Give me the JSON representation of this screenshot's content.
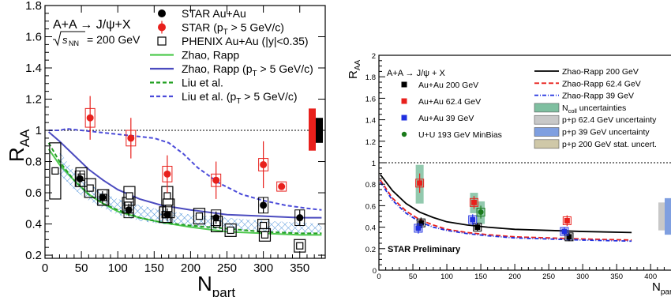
{
  "chart_data": [
    {
      "type": "scatter",
      "xlabel": "N",
      "xlabel_sub": "part",
      "ylabel": "R",
      "ylabel_sub": "AA",
      "xlim": [
        0,
        385
      ],
      "ylim": [
        0.18,
        1.8
      ],
      "x_ticks": [
        "0",
        "50",
        "100",
        "150",
        "200",
        "250",
        "300",
        "350"
      ],
      "y_ticks": [
        "0.2",
        "0.4",
        "0.6",
        "0.8",
        "1",
        "1.2",
        "1.4",
        "1.6",
        "1.8"
      ],
      "x_tick_values": [
        0,
        50,
        100,
        150,
        200,
        250,
        300,
        350
      ],
      "y_tick_values": [
        0.2,
        0.4,
        0.6,
        0.8,
        1.0,
        1.2,
        1.4,
        1.6,
        1.8
      ],
      "reference_line_y": 1.0,
      "annotations": [
        "A+A → J/ψ+X",
        "√s",
        "NN",
        "= 200 GeV"
      ],
      "legend": [
        {
          "label": "STAR Au+Au",
          "marker": "filled-circle",
          "color": "#000000"
        },
        {
          "label": "STAR (p",
          "label_sub": "T",
          "label_end": "> 5 GeV/c)",
          "marker": "filled-circle",
          "color": "#e8201c"
        },
        {
          "label": "PHENIX Au+Au (|y|<0.35)",
          "marker": "open-square",
          "color": "#000000"
        },
        {
          "label": "Zhao, Rapp",
          "line": "solid",
          "color": "#4fc94f"
        },
        {
          "label": "Zhao, Rapp (p",
          "label_sub": "T",
          "label_end": "> 5 GeV/c)",
          "line": "solid",
          "color": "#4b4bbf"
        },
        {
          "label": "Liu et al.",
          "line": "dashed",
          "color": "#22a022"
        },
        {
          "label": "Liu et al. (p",
          "label_sub": "T",
          "label_end": "> 5 GeV/c)",
          "line": "dashed",
          "color": "#4b4bd9"
        }
      ],
      "series": [
        {
          "name": "STAR Au+Au",
          "color": "#000000",
          "x": [
            48,
            79,
            115,
            168,
            235,
            300,
            350
          ],
          "y": [
            0.69,
            0.57,
            0.49,
            0.46,
            0.44,
            0.52,
            0.44
          ],
          "err": [
            0.05,
            0.04,
            0.04,
            0.04,
            0.04,
            0.05,
            0.05
          ],
          "sys": [
            0.05,
            0.05,
            0.05,
            0.05,
            0.05,
            0.05,
            0.05
          ]
        },
        {
          "name": "STAR (pT > 5 GeV/c)",
          "color": "#e8201c",
          "x": [
            62,
            118,
            168,
            235,
            300,
            325
          ],
          "y": [
            1.08,
            0.95,
            0.72,
            0.68,
            0.78,
            0.64
          ],
          "err": [
            0.14,
            0.13,
            0.12,
            0.12,
            0.15,
            0.02
          ],
          "sys": [
            0.06,
            0.05,
            0.05,
            0.04,
            0.04,
            0.03
          ]
        },
        {
          "name": "PHENIX Au+Au (|y|<0.35)",
          "color": "#000000",
          "x": [
            14,
            50,
            62,
            80,
            114,
            116,
            165,
            168,
            170,
            212,
            236,
            255,
            300,
            302,
            350
          ],
          "y": [
            0.74,
            0.7,
            0.63,
            0.57,
            0.52,
            0.58,
            0.46,
            0.58,
            0.5,
            0.45,
            0.4,
            0.36,
            0.39,
            0.33,
            0.26
          ],
          "sys": [
            0.18,
            0.06,
            0.06,
            0.05,
            0.05,
            0.06,
            0.05,
            0.06,
            0.06,
            0.05,
            0.05,
            0.04,
            0.04,
            0.04,
            0.04
          ]
        }
      ],
      "curves": [
        {
          "name": "Zhao, Rapp",
          "color": "#4fc94f",
          "dash": "",
          "x": [
            5,
            20,
            40,
            60,
            80,
            100,
            130,
            160,
            200,
            250,
            300,
            350,
            380
          ],
          "y": [
            0.88,
            0.78,
            0.68,
            0.59,
            0.53,
            0.48,
            0.44,
            0.41,
            0.38,
            0.35,
            0.34,
            0.33,
            0.33
          ]
        },
        {
          "name": "Zhao, Rapp (pT > 5 GeV/c)",
          "color": "#4b4bbf",
          "dash": "",
          "x": [
            5,
            20,
            40,
            60,
            80,
            100,
            130,
            160,
            200,
            250,
            300,
            350,
            380
          ],
          "y": [
            0.99,
            0.93,
            0.84,
            0.75,
            0.68,
            0.62,
            0.56,
            0.52,
            0.49,
            0.46,
            0.45,
            0.44,
            0.44
          ]
        },
        {
          "name": "Liu et al.",
          "color": "#22a022",
          "dash": "5,3",
          "x": [
            5,
            20,
            40,
            60,
            80,
            100,
            130,
            160,
            200,
            250,
            300,
            350,
            380
          ],
          "y": [
            0.92,
            0.8,
            0.68,
            0.59,
            0.53,
            0.49,
            0.44,
            0.41,
            0.39,
            0.37,
            0.35,
            0.34,
            0.34
          ]
        },
        {
          "name": "Liu et al. (pT > 5 GeV/c)",
          "color": "#4b4bd9",
          "dash": "5,3",
          "x": [
            5,
            20,
            30,
            50,
            70,
            90,
            110,
            130,
            150,
            170,
            190,
            210,
            240,
            270,
            300,
            330,
            360,
            380
          ],
          "y": [
            1.0,
            1.0,
            1.01,
            1.0,
            0.99,
            0.98,
            0.97,
            0.96,
            0.95,
            0.92,
            0.85,
            0.76,
            0.66,
            0.59,
            0.55,
            0.52,
            0.5,
            0.49
          ]
        }
      ],
      "uncertainty_boxes": [
        {
          "color": "#e8201c",
          "y_low": 0.87,
          "y_high": 1.14
        },
        {
          "color": "#000000",
          "y_low": 0.92,
          "y_high": 1.08
        }
      ],
      "hatched_band": {
        "color": "#4a90d9",
        "x": [
          20,
          40,
          60,
          80,
          100,
          130,
          160,
          200,
          250,
          300,
          350,
          380
        ],
        "y_low": [
          0.72,
          0.62,
          0.55,
          0.5,
          0.46,
          0.42,
          0.4,
          0.38,
          0.36,
          0.35,
          0.34,
          0.34
        ],
        "y_high": [
          0.86,
          0.74,
          0.66,
          0.6,
          0.56,
          0.52,
          0.49,
          0.46,
          0.44,
          0.42,
          0.41,
          0.4
        ]
      }
    },
    {
      "type": "scatter",
      "xlabel": "N",
      "xlabel_sub": "part",
      "ylabel": "R",
      "ylabel_sub": "AA",
      "xlim": [
        0,
        430
      ],
      "ylim": [
        0,
        2.0
      ],
      "x_ticks": [
        "0",
        "50",
        "100",
        "150",
        "200",
        "250",
        "300",
        "350",
        "400"
      ],
      "y_ticks": [
        "0.2",
        "0.4",
        "0.6",
        "0.8",
        "1",
        "1.2",
        "1.4",
        "1.6",
        "1.8",
        "2"
      ],
      "x_tick_values": [
        0,
        50,
        100,
        150,
        200,
        250,
        300,
        350,
        400
      ],
      "y_tick_values": [
        0.2,
        0.4,
        0.6,
        0.8,
        1.0,
        1.2,
        1.4,
        1.6,
        1.8,
        2.0
      ],
      "reference_line_y": 1.0,
      "annotations": [
        "A+A → J/ψ + X",
        "STAR Preliminary"
      ],
      "legend_left": [
        {
          "label": "Au+Au 200 GeV",
          "color": "#000000"
        },
        {
          "label": "Au+Au 62.4 GeV",
          "color": "#e8201c"
        },
        {
          "label": "Au+Au 39 GeV",
          "color": "#2030e0"
        },
        {
          "label": "U+U 193 GeV MinBias",
          "color": "#1a7a1a"
        }
      ],
      "legend_right": [
        {
          "label": "Zhao-Rapp 200 GeV",
          "line": "solid",
          "color": "#000000"
        },
        {
          "label": "Zhao-Rapp 62.4 GeV",
          "line": "dashed",
          "color": "#e8201c"
        },
        {
          "label": "Zhao-Rapp 39 GeV",
          "line": "dashdot",
          "color": "#2030e0"
        },
        {
          "label": "N",
          "label_sub": "coll",
          "label_end": " uncertainties",
          "box": "#7fbfa0"
        },
        {
          "label": "p+p 62.4 GeV uncertainty",
          "box": "#c8c8c8"
        },
        {
          "label": "p+p 39 GeV uncertainty",
          "box": "#7f9fe0"
        },
        {
          "label": "p+p 200 GeV stat. uncert.",
          "box": "#cfc8a8"
        }
      ],
      "series": [
        {
          "name": "Au+Au 200 GeV",
          "color": "#000000",
          "marker": "square",
          "x": [
            62,
            145,
            280
          ],
          "y": [
            0.44,
            0.4,
            0.31
          ],
          "err": [
            0.05,
            0.04,
            0.04
          ]
        },
        {
          "name": "Au+Au 62.4 GeV",
          "color": "#e8201c",
          "marker": "square",
          "x": [
            60,
            140,
            277
          ],
          "y": [
            0.81,
            0.63,
            0.46
          ],
          "err": [
            0.09,
            0.06,
            0.05
          ]
        },
        {
          "name": "Au+Au 39 GeV",
          "color": "#2030e0",
          "marker": "square",
          "x": [
            58,
            138,
            273
          ],
          "y": [
            0.39,
            0.47,
            0.36
          ],
          "err": [
            0.05,
            0.05,
            0.04
          ]
        },
        {
          "name": "U+U 193 GeV MinBias",
          "color": "#1a7a1a",
          "marker": "circle",
          "x": [
            150
          ],
          "y": [
            0.54
          ],
          "err": [
            0.06
          ]
        }
      ],
      "ncoll_boxes": [
        {
          "x": 60,
          "y_low": 0.62,
          "y_high": 0.98
        },
        {
          "x": 140,
          "y_low": 0.53,
          "y_high": 0.72
        },
        {
          "x": 150,
          "y_low": 0.43,
          "y_high": 0.64
        }
      ],
      "curves": [
        {
          "name": "Zhao-Rapp 200 GeV",
          "color": "#000000",
          "dash": "",
          "x": [
            2,
            20,
            40,
            60,
            80,
            100,
            130,
            160,
            200,
            250,
            300,
            372
          ],
          "y": [
            0.89,
            0.74,
            0.62,
            0.54,
            0.49,
            0.45,
            0.42,
            0.4,
            0.38,
            0.37,
            0.36,
            0.35
          ]
        },
        {
          "name": "Zhao-Rapp 62.4 GeV",
          "color": "#e8201c",
          "dash": "6,3",
          "x": [
            2,
            20,
            40,
            60,
            80,
            100,
            130,
            160,
            200,
            250,
            300,
            372
          ],
          "y": [
            0.84,
            0.67,
            0.55,
            0.47,
            0.42,
            0.38,
            0.35,
            0.33,
            0.31,
            0.3,
            0.29,
            0.28
          ]
        },
        {
          "name": "Zhao-Rapp 39 GeV",
          "color": "#2030e0",
          "dash": "5,2,1,2",
          "x": [
            2,
            20,
            40,
            60,
            80,
            100,
            130,
            160,
            200,
            250,
            300,
            372
          ],
          "y": [
            0.82,
            0.65,
            0.53,
            0.45,
            0.4,
            0.37,
            0.34,
            0.32,
            0.3,
            0.29,
            0.28,
            0.27
          ]
        }
      ],
      "pp_boxes": [
        {
          "color": "#c8c8c8",
          "y_low": 0.37,
          "y_high": 0.63
        },
        {
          "color": "#7f9fe0",
          "y_low": 0.33,
          "y_high": 0.67
        }
      ]
    }
  ]
}
